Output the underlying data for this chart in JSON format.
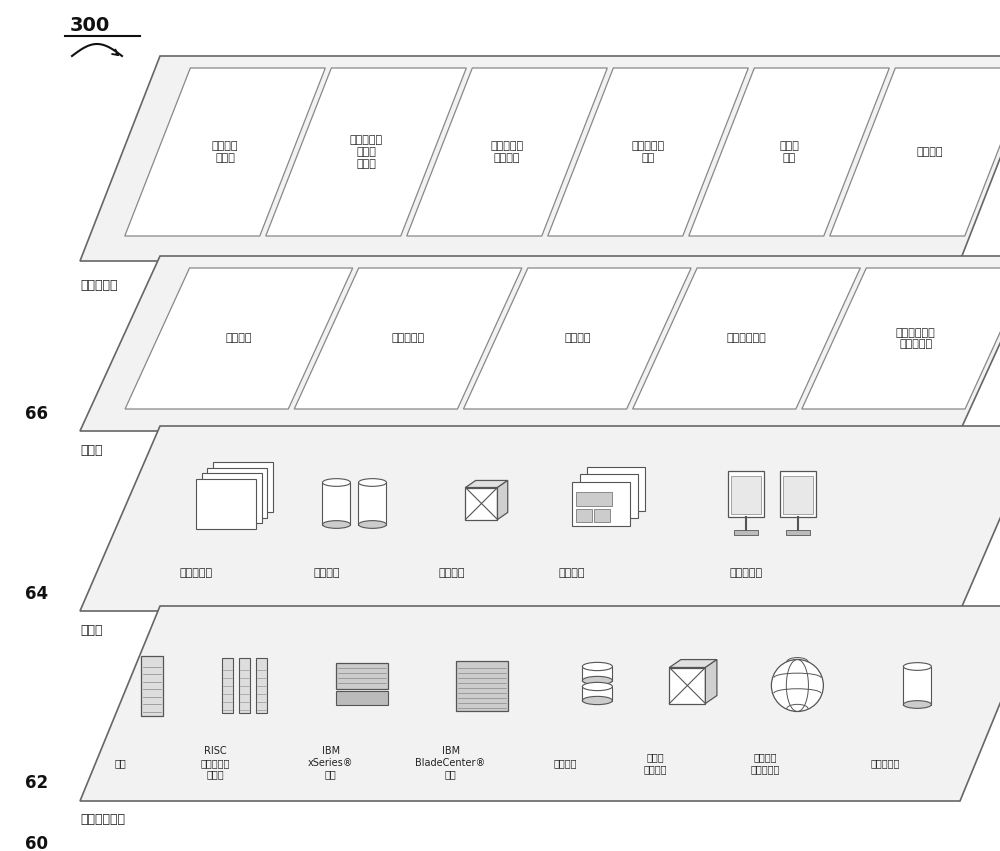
{
  "title_number": "300",
  "background_color": "#ffffff",
  "layer_border_color": "#666666",
  "layer_fill_color": "#f2f2f2",
  "cell_fill": "#ffffff",
  "cell_border": "#888888",
  "workload_cells": [
    "地图绘制\n与导航",
    "软件开发及\n生命周\n期管理",
    "虚拟教室的\n教学传递",
    "数据分析与\n处理",
    "交易的\n处理",
    "消息处理"
  ],
  "mgmt_cells": [
    "资源供应",
    "计量和定价",
    "用户门户",
    "服务水平管理",
    "服务水平协议\n计划和履行"
  ],
  "virtual_labels": [
    "虚拟服务器",
    "虚拟存储",
    "虚拟网络",
    "虚拟应用",
    "虚拟客户端"
  ],
  "hw_labels": [
    "主机",
    "RISC\n体系结构的\n服务器",
    "IBM\nxSeries®\n系统",
    "IBM\nBladeCenter®\n系统",
    "存储设备",
    "网络和\n网络部件",
    "网络应用\n服务器软件",
    "数据库软件"
  ],
  "layer_labels": [
    "工作负载层",
    "管理层",
    "虚拟层",
    "硬件和软件层"
  ],
  "layer_numbers": [
    "",
    "66",
    "64",
    "62"
  ],
  "bottom_number": "60"
}
